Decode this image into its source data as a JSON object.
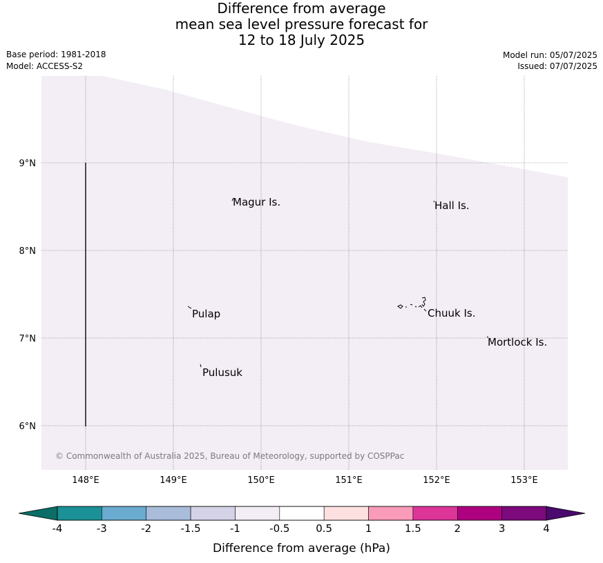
{
  "title": {
    "line1": "Difference from average",
    "line2": "mean sea level pressure forecast for",
    "line3": "12 to 18 July 2025"
  },
  "meta": {
    "base_period": "Base period: 1981-2018",
    "model": "Model: ACCESS-S2",
    "model_run": "Model run: 05/07/2025",
    "issued": "Issued: 07/07/2025"
  },
  "map": {
    "lon_ticks": [
      "148°E",
      "149°E",
      "150°E",
      "151°E",
      "152°E",
      "153°E"
    ],
    "lat_ticks": [
      "9°N",
      "8°N",
      "7°N",
      "6°N"
    ],
    "places": [
      "Magur Is.",
      "Hall Is.",
      "Pulap",
      "Chuuk Is.",
      "Mortlock Is.",
      "Pulusuk"
    ],
    "copyright": "© Commonwealth of Australia 2025, Bureau of Meteorology, supported by COSPPac",
    "field_color": "#f3edf5"
  },
  "colorbar": {
    "label": "Difference from average (hPa)",
    "ticks": [
      "-4",
      "-3",
      "-2",
      "-1.5",
      "-1",
      "-0.5",
      "0.5",
      "1",
      "1.5",
      "2",
      "3",
      "4"
    ],
    "under_color": "#0b6e66",
    "over_color": "#4b0a6e",
    "colors": [
      "#1b9096",
      "#6aabcf",
      "#a9bcda",
      "#d4d2e6",
      "#f3edf5",
      "#ffffff",
      "#fde0e0",
      "#f99bb9",
      "#dd3598",
      "#ae0180",
      "#7c0a7c"
    ]
  }
}
